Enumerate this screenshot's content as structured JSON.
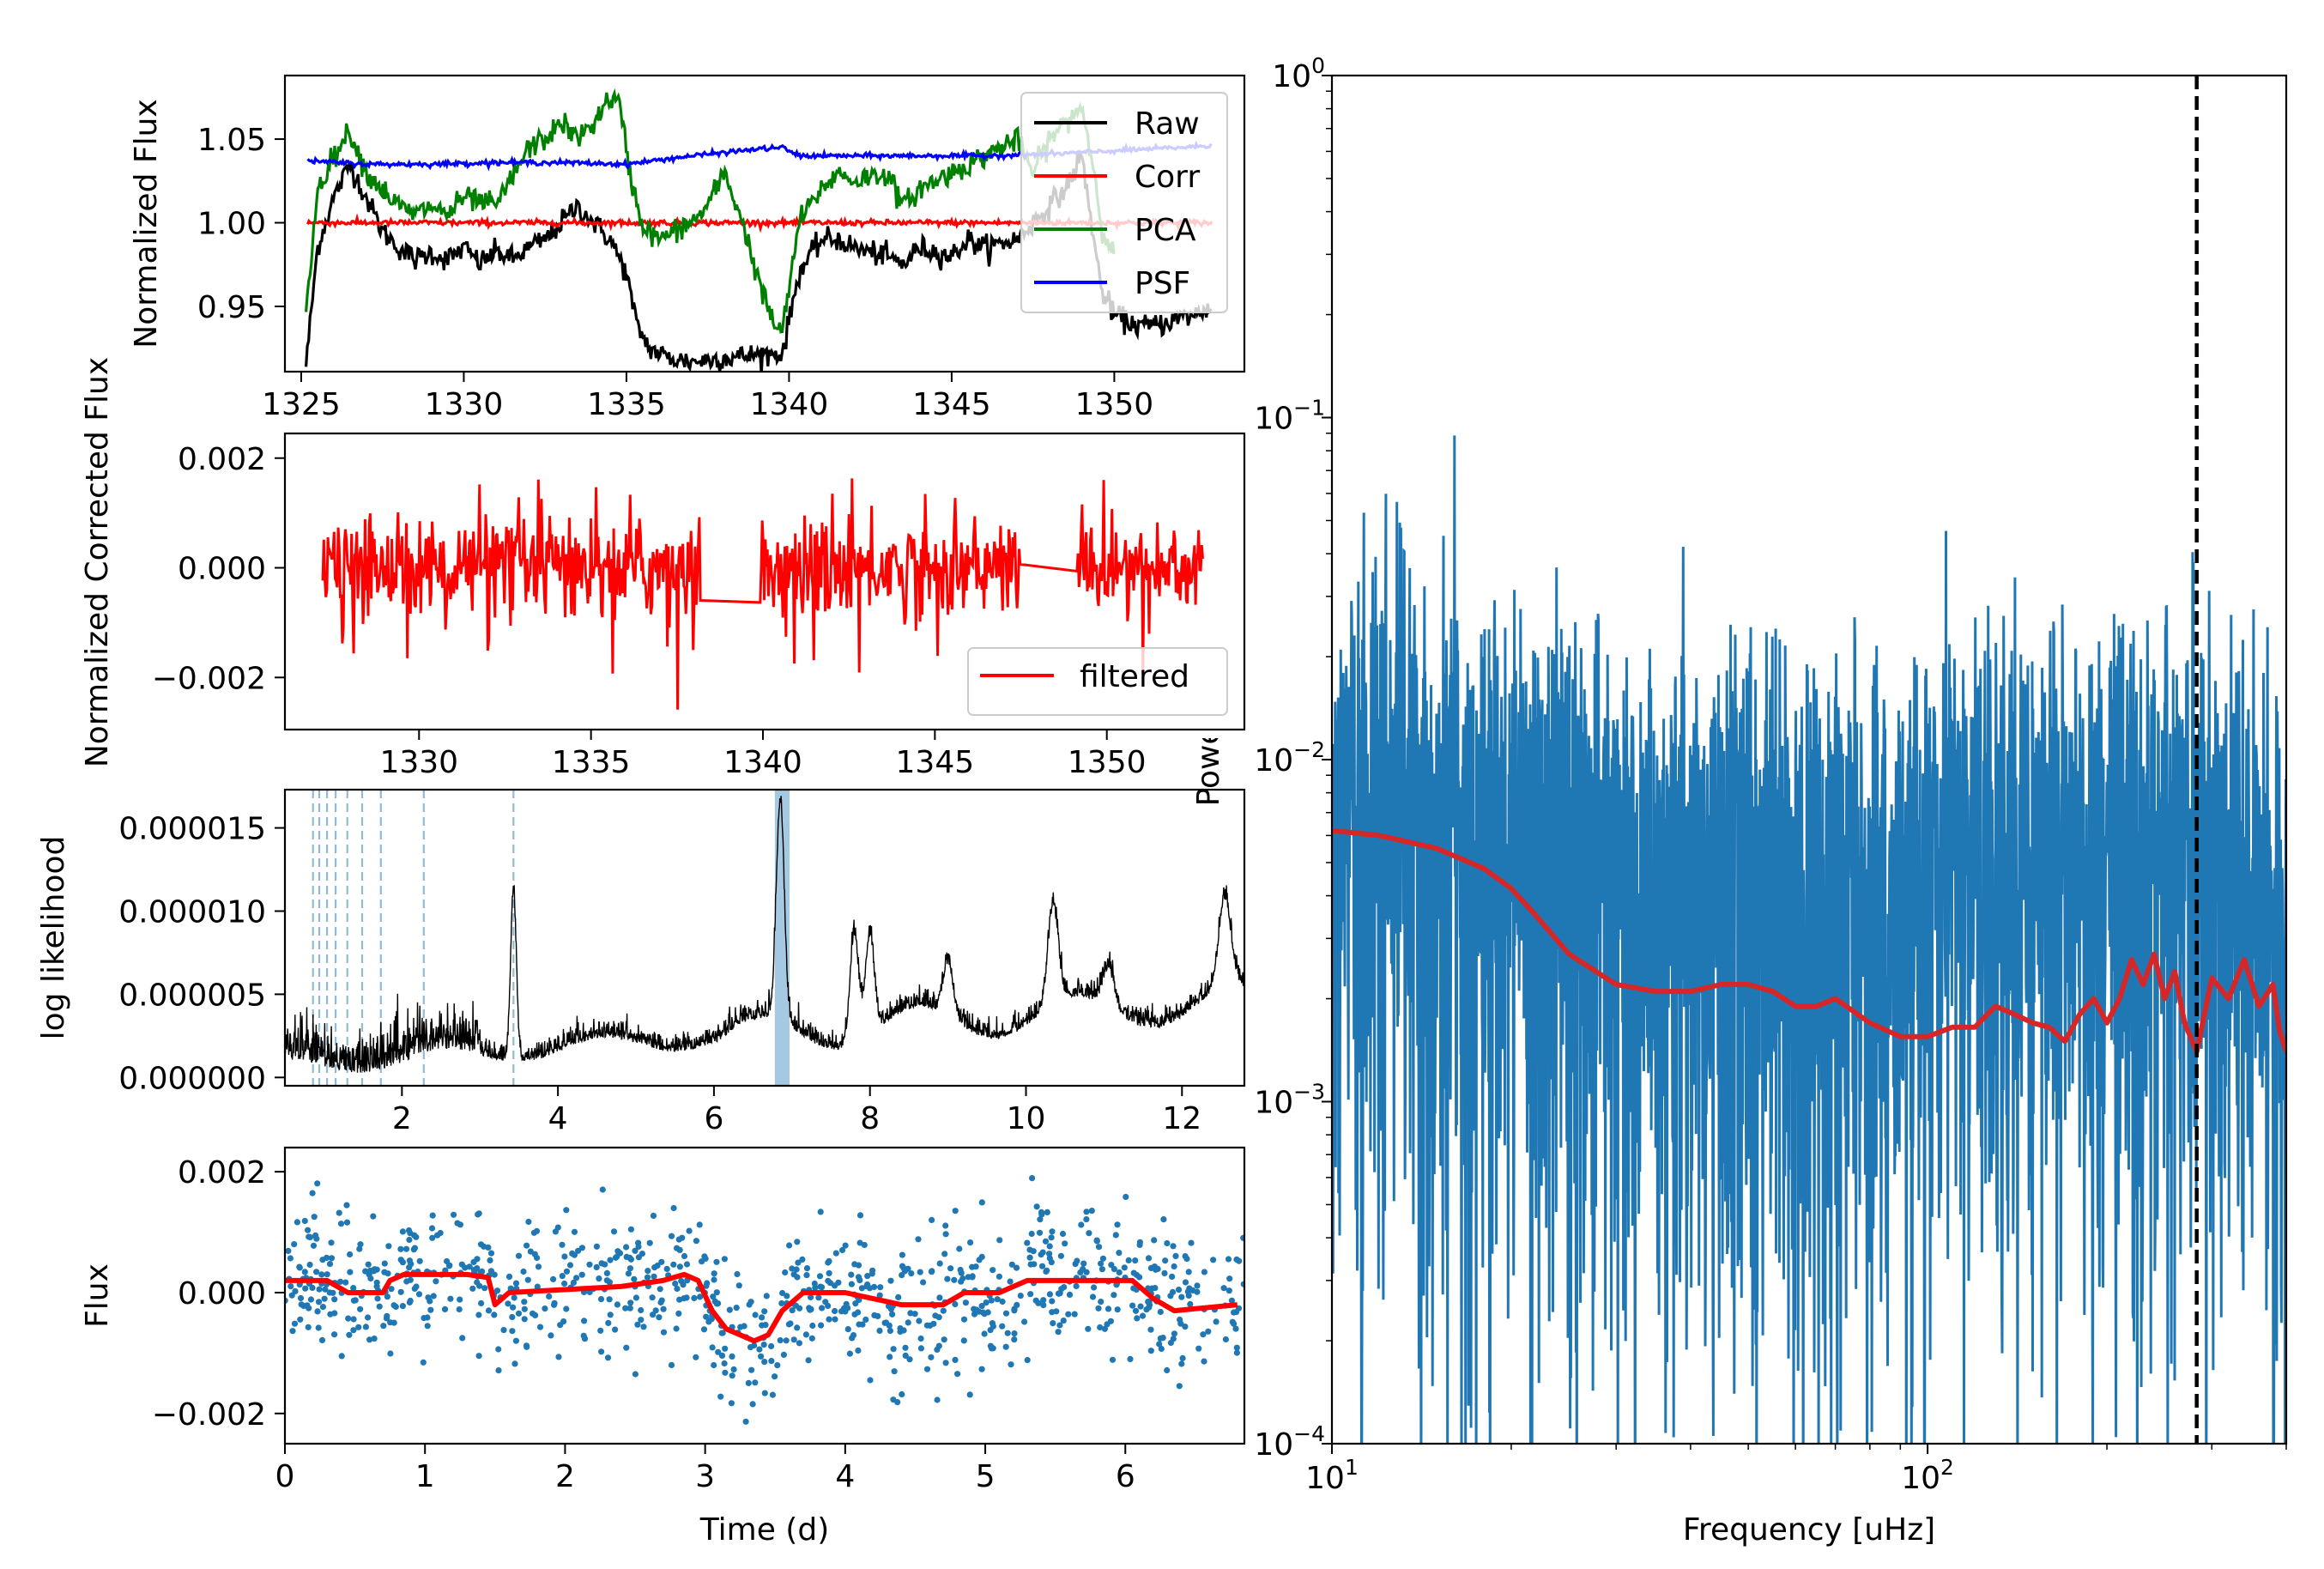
{
  "chart_data": [
    {
      "id": "lightcurves",
      "type": "line",
      "xlabel": "",
      "ylabel": "Normalized Flux",
      "xlim": [
        1324.5,
        1354.0
      ],
      "ylim": [
        0.911,
        1.088
      ],
      "xticks": [
        1325,
        1330,
        1335,
        1340,
        1345,
        1350
      ],
      "yticks": [
        0.95,
        1.0,
        1.05
      ],
      "ytick_labels": [
        "0.95",
        "1.00",
        "1.05"
      ],
      "legend": {
        "placement": "top-right",
        "entries": [
          "Raw",
          "Corr",
          "PCA",
          "PSF"
        ]
      },
      "series": [
        {
          "name": "Raw",
          "color": "#000000",
          "points": [
            [
              1325.15,
              0.915
            ],
            [
              1325.5,
              0.985
            ],
            [
              1326.0,
              1.015
            ],
            [
              1326.5,
              1.035
            ],
            [
              1327.0,
              1.015
            ],
            [
              1327.5,
              0.995
            ],
            [
              1328.0,
              0.985
            ],
            [
              1328.5,
              0.978
            ],
            [
              1329.0,
              0.982
            ],
            [
              1329.5,
              0.978
            ],
            [
              1330.0,
              0.985
            ],
            [
              1330.5,
              0.976
            ],
            [
              1331.0,
              0.983
            ],
            [
              1331.5,
              0.978
            ],
            [
              1332.0,
              0.985
            ],
            [
              1332.5,
              0.99
            ],
            [
              1333.0,
              1.0
            ],
            [
              1333.5,
              1.01
            ],
            [
              1334.0,
              1.0
            ],
            [
              1334.5,
              0.99
            ],
            [
              1335.0,
              0.97
            ],
            [
              1335.3,
              0.94
            ],
            [
              1335.7,
              0.925
            ],
            [
              1336.3,
              0.919
            ],
            [
              1337.0,
              0.917
            ],
            [
              1338.0,
              0.919
            ],
            [
              1339.0,
              0.921
            ],
            [
              1339.8,
              0.922
            ],
            [
              1340.3,
              0.97
            ],
            [
              1341.0,
              0.99
            ],
            [
              1341.5,
              0.99
            ],
            [
              1342.0,
              0.985
            ],
            [
              1343.0,
              0.98
            ],
            [
              1343.5,
              0.975
            ],
            [
              1344.0,
              0.985
            ],
            [
              1345.0,
              0.98
            ],
            [
              1345.5,
              0.99
            ],
            [
              1346.0,
              0.985
            ],
            [
              1347.0,
              0.99
            ],
            [
              1347.5,
              1.0
            ],
            [
              1348.0,
              1.01
            ],
            [
              1348.5,
              1.02
            ],
            [
              1349.0,
              1.04
            ],
            [
              1349.3,
              1.0
            ],
            [
              1349.6,
              0.96
            ],
            [
              1350.0,
              0.945
            ],
            [
              1350.5,
              0.94
            ],
            [
              1351.0,
              0.938
            ],
            [
              1351.5,
              0.94
            ],
            [
              1352.0,
              0.943
            ],
            [
              1352.5,
              0.945
            ],
            [
              1353.0,
              0.95
            ]
          ]
        },
        {
          "name": "Corr",
          "color": "#ff0000",
          "points": [
            [
              1325.2,
              1.0
            ],
            [
              1353.0,
              1.0
            ]
          ]
        },
        {
          "name": "PCA",
          "color": "#008000",
          "points": [
            [
              1325.15,
              0.945
            ],
            [
              1325.5,
              1.02
            ],
            [
              1326.0,
              1.04
            ],
            [
              1326.5,
              1.055
            ],
            [
              1327.0,
              1.03
            ],
            [
              1327.5,
              1.02
            ],
            [
              1328.0,
              1.01
            ],
            [
              1328.5,
              1.005
            ],
            [
              1329.0,
              1.01
            ],
            [
              1329.5,
              1.005
            ],
            [
              1330.0,
              1.015
            ],
            [
              1331.0,
              1.01
            ],
            [
              1332.0,
              1.045
            ],
            [
              1332.5,
              1.05
            ],
            [
              1333.0,
              1.06
            ],
            [
              1333.5,
              1.05
            ],
            [
              1334.0,
              1.06
            ],
            [
              1334.5,
              1.075
            ],
            [
              1334.8,
              1.07
            ],
            [
              1335.1,
              1.03
            ],
            [
              1335.5,
              0.998
            ],
            [
              1336.0,
              0.99
            ],
            [
              1336.5,
              0.995
            ],
            [
              1337.0,
              1.0
            ],
            [
              1337.5,
              1.01
            ],
            [
              1338.0,
              1.03
            ],
            [
              1338.5,
              1.005
            ],
            [
              1339.0,
              0.97
            ],
            [
              1339.5,
              0.94
            ],
            [
              1339.8,
              0.935
            ],
            [
              1340.3,
              1.0
            ],
            [
              1340.8,
              1.015
            ],
            [
              1341.0,
              1.02
            ],
            [
              1341.5,
              1.03
            ],
            [
              1342.0,
              1.025
            ],
            [
              1343.0,
              1.03
            ],
            [
              1343.5,
              1.01
            ],
            [
              1344.0,
              1.02
            ],
            [
              1345.0,
              1.03
            ],
            [
              1346.0,
              1.04
            ],
            [
              1346.5,
              1.045
            ],
            [
              1347.0,
              1.05
            ],
            [
              1347.5,
              1.03
            ],
            [
              1348.0,
              1.05
            ],
            [
              1348.5,
              1.06
            ],
            [
              1349.0,
              1.07
            ],
            [
              1349.3,
              1.04
            ],
            [
              1349.6,
              1.0
            ],
            [
              1350.0,
              0.98
            ]
          ]
        },
        {
          "name": "PSF",
          "color": "#0000ff",
          "points": [
            [
              1325.2,
              1.037
            ],
            [
              1327.0,
              1.035
            ],
            [
              1329.0,
              1.035
            ],
            [
              1331.0,
              1.036
            ],
            [
              1333.0,
              1.036
            ],
            [
              1335.0,
              1.035
            ],
            [
              1337.0,
              1.04
            ],
            [
              1339.0,
              1.044
            ],
            [
              1339.8,
              1.045
            ],
            [
              1340.3,
              1.04
            ],
            [
              1342.0,
              1.04
            ],
            [
              1344.0,
              1.04
            ],
            [
              1346.0,
              1.04
            ],
            [
              1348.0,
              1.041
            ],
            [
              1350.0,
              1.043
            ],
            [
              1352.0,
              1.045
            ],
            [
              1353.0,
              1.046
            ]
          ]
        }
      ]
    },
    {
      "id": "corrected",
      "type": "line",
      "xlabel": "",
      "ylabel": "Normalized Corrected Flux",
      "xlim": [
        1326.1,
        1354.0
      ],
      "ylim": [
        -0.00295,
        0.00245
      ],
      "xticks": [
        1330,
        1335,
        1340,
        1345,
        1350
      ],
      "yticks": [
        -0.002,
        0.0,
        0.002
      ],
      "ytick_labels": [
        "−0.002",
        "0.000",
        "0.002"
      ],
      "legend": {
        "placement": "lower-right",
        "entries": [
          "filtered"
        ]
      },
      "series": [
        {
          "name": "filtered",
          "color": "#ff0000",
          "x_range": [
            1327.2,
            1352.8
          ],
          "gaps": [
            [
              1338.2,
              1339.9
            ],
            [
              1347.5,
              1349.1
            ]
          ],
          "noise_amplitude": 0.0009
        }
      ]
    },
    {
      "id": "likelihood",
      "type": "line",
      "xlabel": "",
      "ylabel": "log likelihood",
      "xlim": [
        0.5,
        12.8
      ],
      "ylim": [
        -5e-07,
        1.73e-05
      ],
      "xticks": [
        2,
        4,
        6,
        8,
        10,
        12
      ],
      "yticks": [
        0.0,
        5e-06,
        1e-05,
        1.5e-05
      ],
      "ytick_labels": [
        "0.000000",
        "0.000005",
        "0.000010",
        "0.000015"
      ],
      "harmonic_lines": [
        0.86,
        0.94,
        1.04,
        1.15,
        1.3,
        1.49,
        1.73,
        2.28,
        3.43
      ],
      "highlight_band": [
        6.78,
        6.97
      ],
      "peaks": [
        [
          3.43,
          1.12e-05
        ],
        [
          6.85,
          1.65e-05
        ],
        [
          7.8,
          8.5e-06
        ],
        [
          8.0,
          8.5e-06
        ],
        [
          9.0,
          6.8e-06
        ],
        [
          10.35,
          1.02e-05
        ],
        [
          11.05,
          6.5e-06
        ],
        [
          12.55,
          1.07e-05
        ]
      ]
    },
    {
      "id": "folded",
      "type": "scatter",
      "xlabel": "Time (d)",
      "ylabel": "Flux",
      "xlim": [
        0,
        6.85
      ],
      "ylim": [
        -0.0025,
        0.0024
      ],
      "xticks": [
        0,
        1,
        2,
        3,
        4,
        5,
        6
      ],
      "yticks": [
        -0.002,
        0.0,
        0.002
      ],
      "ytick_labels": [
        "−0.002",
        "0.000",
        "0.002"
      ],
      "scatter_color": "#1f77b4",
      "scatter_spread": 0.00058,
      "scatter_count": 900,
      "trend": {
        "color": "#ff0000",
        "points": [
          [
            0,
            0.0002
          ],
          [
            0.3,
            0.0002
          ],
          [
            0.45,
            0.0
          ],
          [
            0.7,
            0.0
          ],
          [
            0.75,
            0.0002
          ],
          [
            0.85,
            0.0003
          ],
          [
            1.3,
            0.0003
          ],
          [
            1.45,
            0.00025
          ],
          [
            1.5,
            -0.0002
          ],
          [
            1.6,
            0.0
          ],
          [
            2.4,
            0.0001
          ],
          [
            2.7,
            0.0002
          ],
          [
            2.85,
            0.0003
          ],
          [
            2.95,
            0.0002
          ],
          [
            3.05,
            -0.0003
          ],
          [
            3.15,
            -0.0006
          ],
          [
            3.35,
            -0.0008
          ],
          [
            3.45,
            -0.0007
          ],
          [
            3.55,
            -0.0003
          ],
          [
            3.7,
            0.0
          ],
          [
            4.0,
            0.0
          ],
          [
            4.4,
            -0.0002
          ],
          [
            4.7,
            -0.0002
          ],
          [
            4.85,
            0.0
          ],
          [
            5.1,
            0.0
          ],
          [
            5.3,
            0.0002
          ],
          [
            5.7,
            0.0002
          ],
          [
            6.05,
            0.0002
          ],
          [
            6.2,
            -0.0001
          ],
          [
            6.35,
            -0.0003
          ],
          [
            6.8,
            -0.0002
          ]
        ]
      }
    },
    {
      "id": "power",
      "type": "line",
      "xlabel": "Frequency [uHz]",
      "ylabel": "Power",
      "xscale": "log",
      "yscale": "log",
      "xlim": [
        10,
        400
      ],
      "ylim": [
        0.0001,
        1
      ],
      "xticks": [
        10,
        100
      ],
      "yticks": [
        0.0001,
        0.001,
        0.01,
        0.1,
        1
      ],
      "ytick_exponents": [
        "−4",
        "−3",
        "−2",
        "−1",
        "0"
      ],
      "vline": 283,
      "series": [
        {
          "name": "",
          "color": "#1f77b4",
          "description_scale": [
            [
              10,
              0.011
            ],
            [
              12,
              0.022
            ],
            [
              15,
              0.013
            ],
            [
              20,
              0.012
            ],
            [
              30,
              0.009
            ],
            [
              50,
              0.0085
            ],
            [
              100,
              0.009
            ],
            [
              200,
              0.011
            ],
            [
              300,
              0.012
            ],
            [
              400,
              0.008
            ]
          ]
        },
        {
          "name": "",
          "color": "#d62728",
          "points": [
            [
              10,
              0.0062
            ],
            [
              12,
              0.006
            ],
            [
              15,
              0.0055
            ],
            [
              18,
              0.0048
            ],
            [
              20,
              0.0042
            ],
            [
              22,
              0.0035
            ],
            [
              25,
              0.0027
            ],
            [
              30,
              0.0022
            ],
            [
              35,
              0.0021
            ],
            [
              40,
              0.0021
            ],
            [
              45,
              0.0022
            ],
            [
              50,
              0.0022
            ],
            [
              55,
              0.0021
            ],
            [
              60,
              0.0019
            ],
            [
              65,
              0.0019
            ],
            [
              70,
              0.002
            ],
            [
              80,
              0.0017
            ],
            [
              90,
              0.00155
            ],
            [
              100,
              0.00155
            ],
            [
              110,
              0.00165
            ],
            [
              120,
              0.00165
            ],
            [
              130,
              0.0019
            ],
            [
              140,
              0.0018
            ],
            [
              150,
              0.0017
            ],
            [
              160,
              0.00165
            ],
            [
              170,
              0.0015
            ],
            [
              180,
              0.0018
            ],
            [
              190,
              0.002
            ],
            [
              200,
              0.0017
            ],
            [
              210,
              0.002
            ],
            [
              220,
              0.0026
            ],
            [
              230,
              0.0022
            ],
            [
              240,
              0.0027
            ],
            [
              250,
              0.002
            ],
            [
              260,
              0.0024
            ],
            [
              270,
              0.0017
            ],
            [
              283,
              0.0014
            ],
            [
              300,
              0.0023
            ],
            [
              320,
              0.002
            ],
            [
              340,
              0.0026
            ],
            [
              360,
              0.0019
            ],
            [
              380,
              0.0022
            ],
            [
              390,
              0.0016
            ],
            [
              400,
              0.0014
            ]
          ]
        }
      ]
    }
  ]
}
